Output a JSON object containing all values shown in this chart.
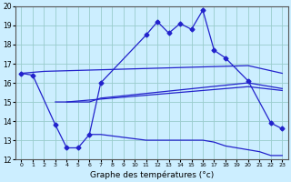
{
  "line_color": "#2222cc",
  "bg_color": "#cceeff",
  "grid_color": "#99cccc",
  "ylim": [
    12,
    20
  ],
  "yticks": [
    12,
    13,
    14,
    15,
    16,
    17,
    18,
    19,
    20
  ],
  "xlabel": "Graphe des températures (°c)",
  "obs_x": [
    0,
    1,
    3,
    4,
    5,
    6,
    7,
    11,
    12,
    13,
    14,
    15,
    16,
    17,
    18,
    20,
    22,
    23
  ],
  "obs_y": [
    16.5,
    16.4,
    13.8,
    12.6,
    12.6,
    13.3,
    16.0,
    18.5,
    19.2,
    18.6,
    19.1,
    18.8,
    19.8,
    17.7,
    17.3,
    16.1,
    13.9,
    13.6
  ],
  "line1_x": [
    0,
    2,
    20,
    23
  ],
  "line1_y": [
    16.5,
    16.6,
    16.9,
    16.5
  ],
  "line2_x": [
    3,
    4,
    6,
    20,
    23
  ],
  "line2_y": [
    15.0,
    15.0,
    15.1,
    15.8,
    15.6
  ],
  "line3_x": [
    4,
    6,
    7,
    20,
    23
  ],
  "line3_y": [
    15.0,
    15.0,
    15.2,
    16.0,
    15.7
  ],
  "line4_x": [
    6,
    7,
    11,
    12,
    13,
    14,
    15,
    16,
    17,
    18,
    19,
    20,
    21,
    22,
    23
  ],
  "line4_y": [
    13.3,
    13.3,
    13.0,
    13.0,
    13.0,
    13.0,
    13.0,
    13.0,
    12.9,
    12.7,
    12.6,
    12.5,
    12.4,
    12.2,
    12.2
  ]
}
